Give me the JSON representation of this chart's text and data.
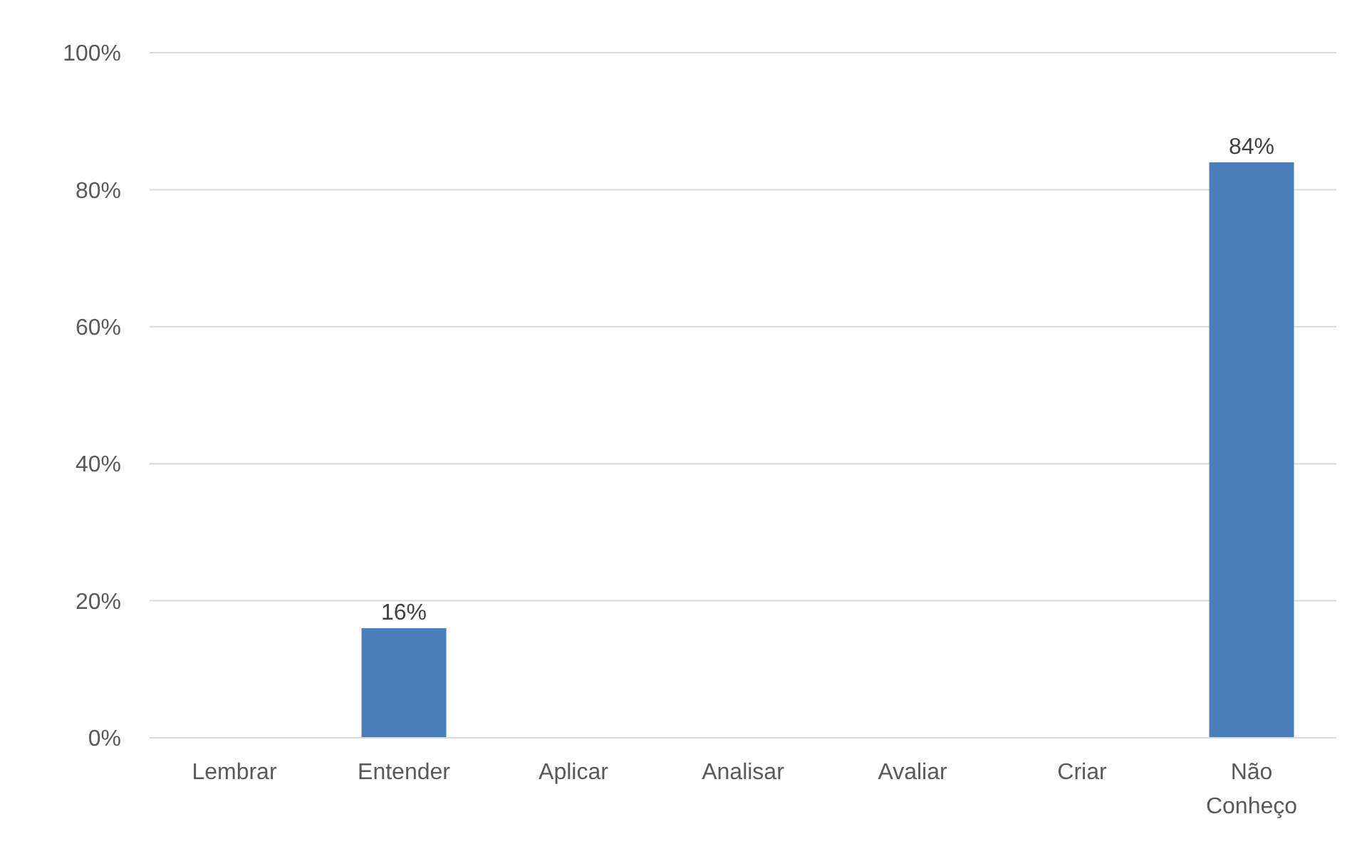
{
  "chart_data": {
    "type": "bar",
    "categories": [
      "Lembrar",
      "Entender",
      "Aplicar",
      "Analisar",
      "Avaliar",
      "Criar",
      "Não Conheço"
    ],
    "values": [
      0,
      16,
      0,
      0,
      0,
      0,
      84
    ],
    "value_labels": [
      null,
      "16%",
      null,
      null,
      null,
      null,
      "84%"
    ],
    "color": "#4a7ebb",
    "ylim": [
      0,
      100
    ],
    "yticks": [
      {
        "value": 0,
        "label": "0%"
      },
      {
        "value": 20,
        "label": "20%"
      },
      {
        "value": 40,
        "label": "40%"
      },
      {
        "value": 60,
        "label": "60%"
      },
      {
        "value": 80,
        "label": "80%"
      },
      {
        "value": 100,
        "label": "100%"
      }
    ],
    "grid": "y"
  }
}
